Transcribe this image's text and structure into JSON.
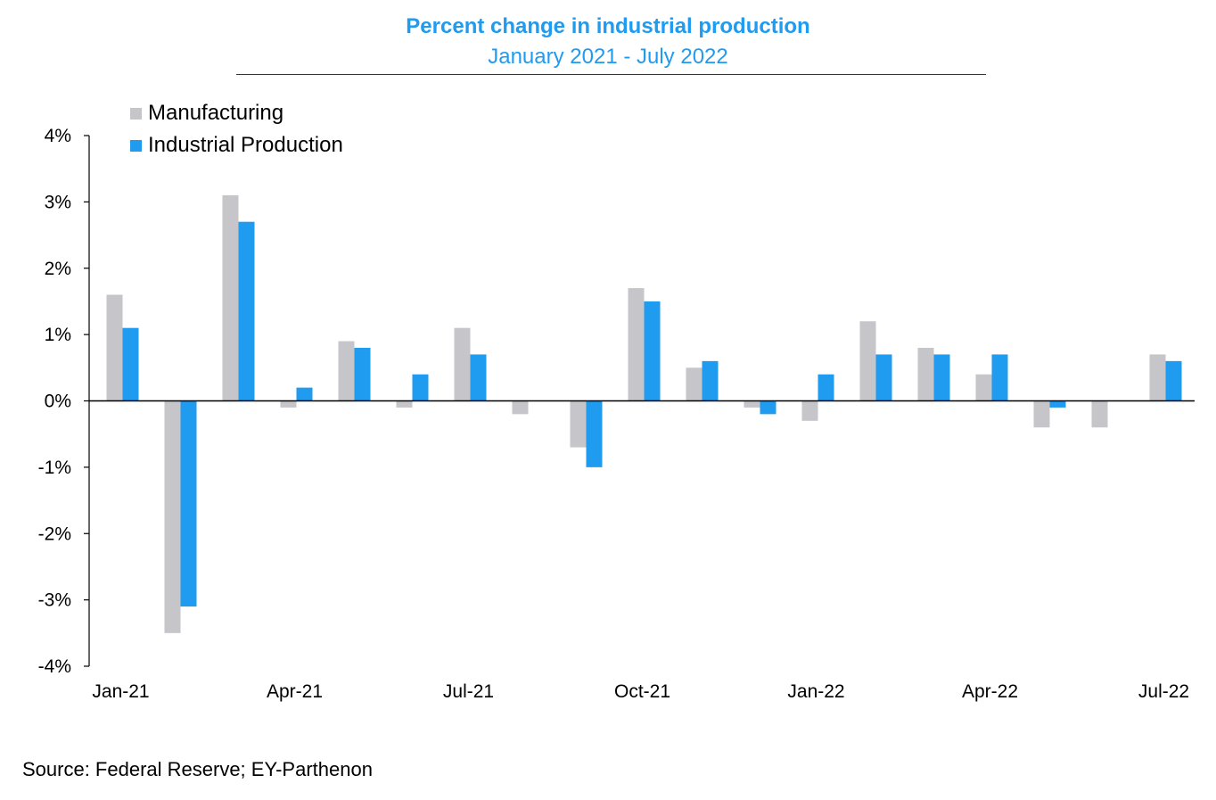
{
  "chart_data": {
    "type": "bar",
    "title": "Percent change in industrial production",
    "subtitle": "January 2021 - July 2022",
    "categories": [
      "Jan-21",
      "Feb-21",
      "Mar-21",
      "Apr-21",
      "May-21",
      "Jun-21",
      "Jul-21",
      "Aug-21",
      "Sep-21",
      "Oct-21",
      "Nov-21",
      "Dec-21",
      "Jan-22",
      "Feb-22",
      "Mar-22",
      "Apr-22",
      "May-22",
      "Jun-22",
      "Jul-22"
    ],
    "x_tick_labels": [
      "Jan-21",
      "Apr-21",
      "Jul-21",
      "Oct-21",
      "Jan-22",
      "Apr-22",
      "Jul-22"
    ],
    "y_tick_labels": [
      "4%",
      "3%",
      "2%",
      "1%",
      "0%",
      "-1%",
      "-2%",
      "-3%",
      "-4%"
    ],
    "ylim": [
      -4,
      4
    ],
    "grid": false,
    "legend_position": "top-left",
    "series": [
      {
        "name": "Manufacturing",
        "color": "#c5c5ca",
        "values": [
          1.6,
          -3.5,
          3.1,
          -0.1,
          0.9,
          -0.1,
          1.1,
          -0.2,
          -0.7,
          1.7,
          0.5,
          -0.1,
          -0.3,
          1.2,
          0.8,
          0.4,
          -0.4,
          -0.4,
          0.7
        ]
      },
      {
        "name": "Industrial Production",
        "color": "#1f9bf0",
        "values": [
          1.1,
          -3.1,
          2.7,
          0.2,
          0.8,
          0.4,
          0.7,
          0.0,
          -1.0,
          1.5,
          0.6,
          -0.2,
          0.4,
          0.7,
          0.7,
          0.7,
          -0.1,
          0.0,
          0.6
        ]
      }
    ]
  },
  "colors": {
    "title": "#1f9bf0"
  },
  "source": "Source: Federal Reserve; EY-Parthenon"
}
